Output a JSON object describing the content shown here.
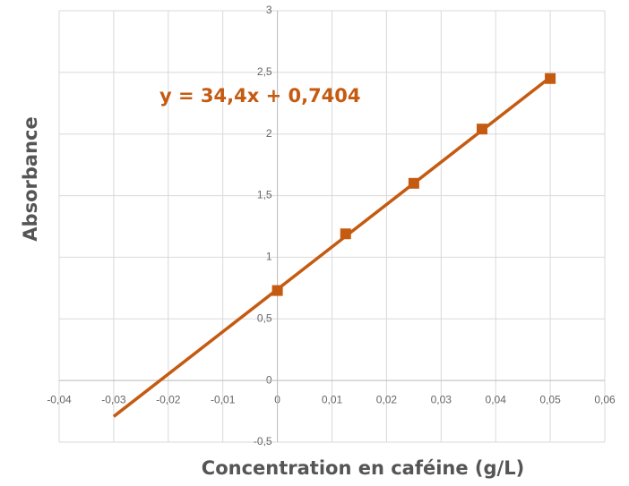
{
  "chart_data": {
    "type": "scatter",
    "x_label": "Concentration en caféine (g/L)",
    "y_label": "Absorbance",
    "annotation": "y = 34,4x + 0,7404",
    "x": [
      0,
      0.0125,
      0.025,
      0.0375,
      0.05
    ],
    "values": [
      0.73,
      1.19,
      1.6,
      2.04,
      2.45
    ],
    "color": "#c55a11",
    "marker": "square",
    "trendline": {
      "x": [
        -0.03,
        0.05
      ],
      "values": [
        -0.292,
        2.46
      ]
    },
    "xlim": [
      -0.04,
      0.06
    ],
    "xticks": [
      {
        "value": -0.04,
        "label": "-0,04"
      },
      {
        "value": -0.03,
        "label": "-0,03"
      },
      {
        "value": -0.02,
        "label": "-0,02"
      },
      {
        "value": -0.01,
        "label": "-0,01"
      },
      0,
      {
        "value": 0.01,
        "label": "0,01"
      },
      {
        "value": 0.02,
        "label": "0,02"
      },
      {
        "value": 0.03,
        "label": "0,03"
      },
      {
        "value": 0.04,
        "label": "0,04"
      },
      {
        "value": 0.05,
        "label": "0,05"
      },
      {
        "value": 0.06,
        "label": "0,06"
      }
    ],
    "ylim": [
      -0.5,
      3
    ],
    "yticks": [
      {
        "value": -0.5,
        "label": "-0,5"
      },
      0,
      {
        "value": 0.5,
        "label": "0,5"
      },
      1,
      {
        "value": 1.5,
        "label": "1,5"
      },
      2,
      {
        "value": 2.5,
        "label": "2,5"
      },
      3
    ],
    "grid": true
  }
}
